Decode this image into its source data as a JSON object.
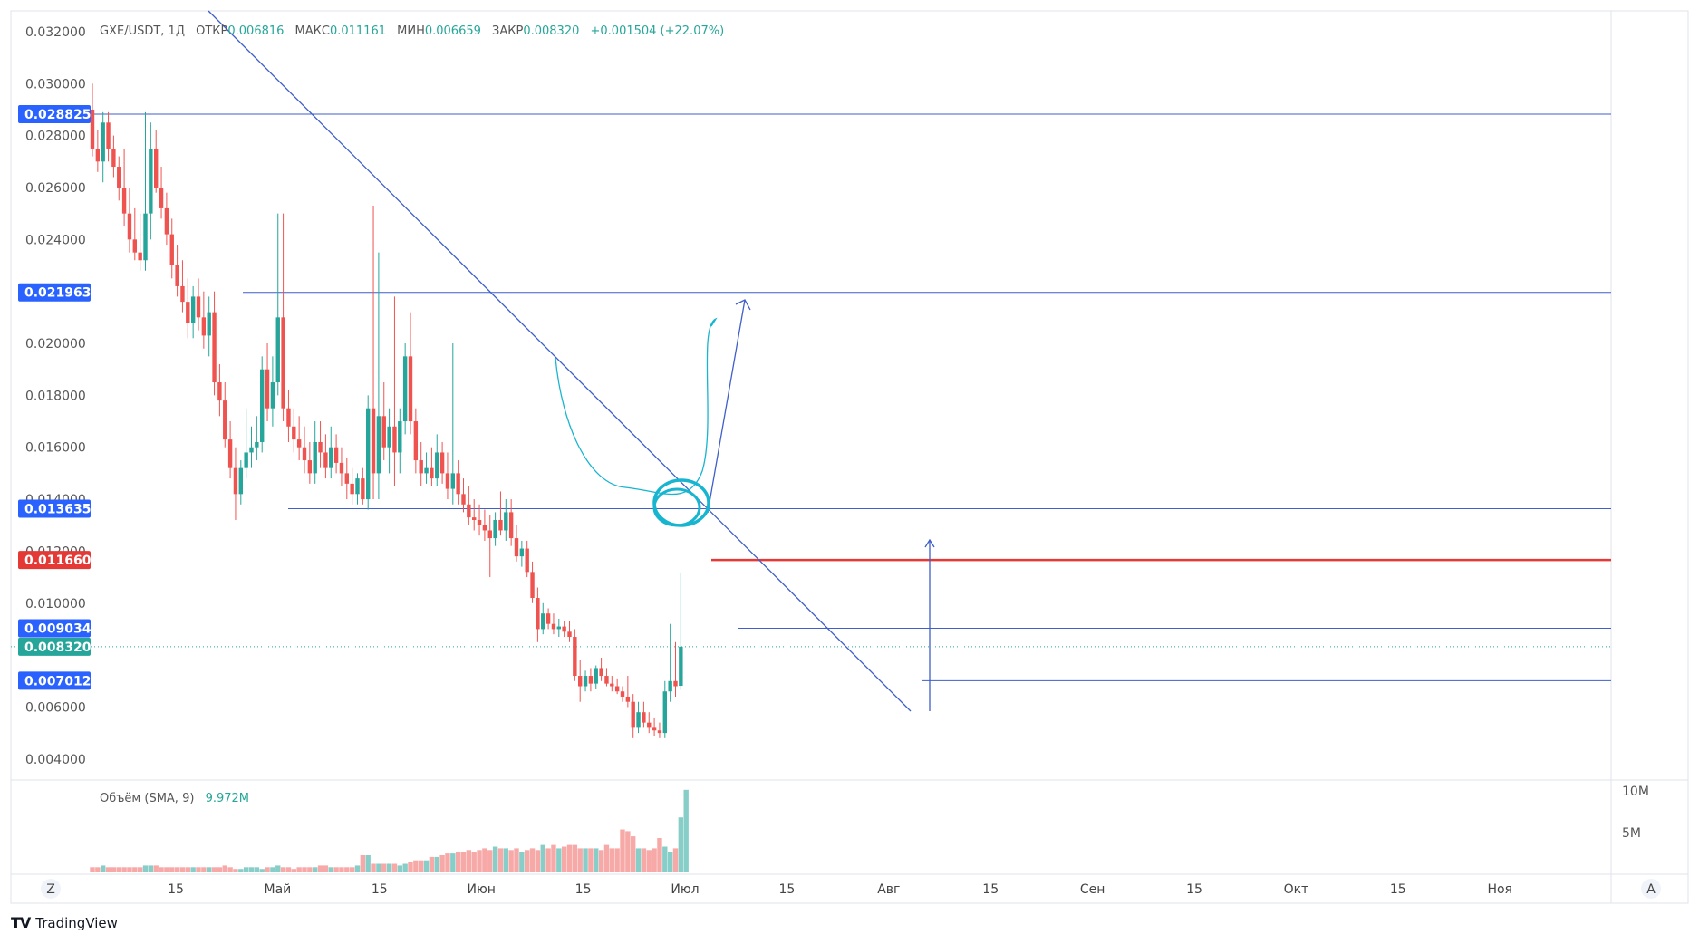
{
  "legend": {
    "symbol": "GXE/USDT, 1Д",
    "open_label": "ОТКР",
    "open": "0.006816",
    "high_label": "МАКС",
    "high": "0.011161",
    "low_label": "МИН",
    "low": "0.006659",
    "close_label": "ЗАКР",
    "close": "0.008320",
    "change": "+0.001504 (+22.07%)"
  },
  "volume_legend": {
    "label": "Объём (SMA, 9)",
    "value": "9.972M"
  },
  "volume_axis": [
    "10M",
    "5M"
  ],
  "bottom_buttons": {
    "left": "Z",
    "right": "A"
  },
  "brand": "TradingView",
  "colors": {
    "up": "#26a69a",
    "down": "#ef5350",
    "line": "#2962ff",
    "red_level": "#e53935",
    "cyan": "#17b5cf",
    "text_green": "#26a69a"
  },
  "chart_data": {
    "type": "candlestick",
    "price_ticks": [
      "0.032000",
      "0.030000",
      "0.028000",
      "0.026000",
      "0.024000",
      "0.020000",
      "0.018000",
      "0.016000",
      "0.014000",
      "0.012000",
      "0.010000",
      "0.006000",
      "0.004000"
    ],
    "ylim": [
      0.0034,
      0.0328
    ],
    "time_ticks": [
      "15",
      "Май",
      "15",
      "Июн",
      "15",
      "Июл",
      "15",
      "Авг",
      "15",
      "Сен",
      "15",
      "Окт",
      "15",
      "Ноя"
    ],
    "level_badges": [
      {
        "value": "0.028825",
        "color": "#2962ff"
      },
      {
        "value": "0.021963",
        "color": "#2962ff"
      },
      {
        "value": "0.013635",
        "color": "#2962ff"
      },
      {
        "value": "0.011660",
        "color": "#e53935"
      },
      {
        "value": "0.009034",
        "color": "#2962ff"
      },
      {
        "value": "0.008320",
        "color": "#26a69a"
      },
      {
        "value": "0.007012",
        "color": "#2962ff"
      }
    ],
    "candles": [
      [
        0.029,
        0.03,
        0.0272,
        0.0275
      ],
      [
        0.0275,
        0.0282,
        0.0266,
        0.027
      ],
      [
        0.027,
        0.0289,
        0.0262,
        0.0285
      ],
      [
        0.0285,
        0.0289,
        0.027,
        0.0275
      ],
      [
        0.0275,
        0.028,
        0.0264,
        0.0268
      ],
      [
        0.0268,
        0.0272,
        0.0255,
        0.026
      ],
      [
        0.026,
        0.0275,
        0.0245,
        0.025
      ],
      [
        0.025,
        0.026,
        0.0235,
        0.024
      ],
      [
        0.024,
        0.0252,
        0.0232,
        0.0235
      ],
      [
        0.0235,
        0.025,
        0.0228,
        0.0232
      ],
      [
        0.0232,
        0.0289,
        0.0228,
        0.025
      ],
      [
        0.025,
        0.0285,
        0.024,
        0.0275
      ],
      [
        0.0275,
        0.0282,
        0.0258,
        0.026
      ],
      [
        0.026,
        0.0268,
        0.0248,
        0.0252
      ],
      [
        0.0252,
        0.0258,
        0.0238,
        0.0242
      ],
      [
        0.0242,
        0.0248,
        0.0225,
        0.023
      ],
      [
        0.023,
        0.0238,
        0.0218,
        0.0222
      ],
      [
        0.0222,
        0.0232,
        0.0212,
        0.0216
      ],
      [
        0.0216,
        0.0225,
        0.0202,
        0.0208
      ],
      [
        0.0208,
        0.0222,
        0.0202,
        0.0218
      ],
      [
        0.0218,
        0.0225,
        0.0205,
        0.021
      ],
      [
        0.021,
        0.022,
        0.0198,
        0.0203
      ],
      [
        0.0203,
        0.0218,
        0.0195,
        0.0212
      ],
      [
        0.0212,
        0.022,
        0.018,
        0.0185
      ],
      [
        0.0185,
        0.0192,
        0.0172,
        0.0178
      ],
      [
        0.0178,
        0.0185,
        0.016,
        0.0163
      ],
      [
        0.0163,
        0.017,
        0.0148,
        0.0152
      ],
      [
        0.0152,
        0.016,
        0.0132,
        0.0142
      ],
      [
        0.0142,
        0.0155,
        0.0138,
        0.0152
      ],
      [
        0.0152,
        0.0175,
        0.0148,
        0.0158
      ],
      [
        0.0158,
        0.0168,
        0.0152,
        0.016
      ],
      [
        0.016,
        0.0172,
        0.0155,
        0.0162
      ],
      [
        0.0162,
        0.0195,
        0.0158,
        0.019
      ],
      [
        0.019,
        0.02,
        0.017,
        0.0175
      ],
      [
        0.0175,
        0.0195,
        0.0168,
        0.0185
      ],
      [
        0.0185,
        0.025,
        0.018,
        0.021
      ],
      [
        0.021,
        0.025,
        0.017,
        0.0175
      ],
      [
        0.0175,
        0.0182,
        0.0162,
        0.0168
      ],
      [
        0.0168,
        0.0175,
        0.0158,
        0.0163
      ],
      [
        0.0163,
        0.0172,
        0.0155,
        0.016
      ],
      [
        0.016,
        0.0168,
        0.015,
        0.0155
      ],
      [
        0.0155,
        0.0162,
        0.0146,
        0.015
      ],
      [
        0.015,
        0.017,
        0.0146,
        0.0162
      ],
      [
        0.0162,
        0.017,
        0.0152,
        0.0158
      ],
      [
        0.0158,
        0.0165,
        0.0148,
        0.0152
      ],
      [
        0.0152,
        0.0168,
        0.0148,
        0.016
      ],
      [
        0.016,
        0.0165,
        0.015,
        0.0154
      ],
      [
        0.0154,
        0.016,
        0.0145,
        0.015
      ],
      [
        0.015,
        0.0156,
        0.014,
        0.0146
      ],
      [
        0.0146,
        0.0152,
        0.0138,
        0.0142
      ],
      [
        0.0142,
        0.015,
        0.0138,
        0.0148
      ],
      [
        0.0148,
        0.0152,
        0.0138,
        0.014
      ],
      [
        0.014,
        0.018,
        0.0136,
        0.0175
      ],
      [
        0.0175,
        0.0253,
        0.014,
        0.015
      ],
      [
        0.015,
        0.0235,
        0.014,
        0.0172
      ],
      [
        0.0172,
        0.0185,
        0.0155,
        0.016
      ],
      [
        0.016,
        0.0175,
        0.015,
        0.0168
      ],
      [
        0.0168,
        0.0218,
        0.0145,
        0.0158
      ],
      [
        0.0158,
        0.0175,
        0.015,
        0.017
      ],
      [
        0.017,
        0.02,
        0.0165,
        0.0195
      ],
      [
        0.0195,
        0.0212,
        0.0165,
        0.017
      ],
      [
        0.017,
        0.0175,
        0.015,
        0.0155
      ],
      [
        0.0155,
        0.0162,
        0.0145,
        0.015
      ],
      [
        0.015,
        0.0158,
        0.0146,
        0.0152
      ],
      [
        0.0152,
        0.016,
        0.0145,
        0.0148
      ],
      [
        0.0148,
        0.0165,
        0.0145,
        0.0158
      ],
      [
        0.0158,
        0.0162,
        0.0146,
        0.015
      ],
      [
        0.015,
        0.0158,
        0.014,
        0.0144
      ],
      [
        0.0144,
        0.02,
        0.0138,
        0.015
      ],
      [
        0.015,
        0.0155,
        0.0138,
        0.0142
      ],
      [
        0.0142,
        0.0148,
        0.0135,
        0.0138
      ],
      [
        0.0138,
        0.0145,
        0.013,
        0.0133
      ],
      [
        0.0133,
        0.014,
        0.0128,
        0.0132
      ],
      [
        0.0132,
        0.0138,
        0.0126,
        0.013
      ],
      [
        0.013,
        0.0136,
        0.0124,
        0.0128
      ],
      [
        0.0128,
        0.0134,
        0.011,
        0.0125
      ],
      [
        0.0125,
        0.0135,
        0.0122,
        0.0132
      ],
      [
        0.0132,
        0.0143,
        0.0126,
        0.0128
      ],
      [
        0.0128,
        0.014,
        0.0124,
        0.0135
      ],
      [
        0.0135,
        0.014,
        0.0122,
        0.0125
      ],
      [
        0.0125,
        0.013,
        0.0116,
        0.0118
      ],
      [
        0.0118,
        0.0124,
        0.0114,
        0.0121
      ],
      [
        0.0121,
        0.0124,
        0.011,
        0.0112
      ],
      [
        0.0112,
        0.0116,
        0.01,
        0.0102
      ],
      [
        0.0102,
        0.0106,
        0.0085,
        0.009
      ],
      [
        0.009,
        0.01,
        0.0088,
        0.0096
      ],
      [
        0.0096,
        0.0098,
        0.009,
        0.0092
      ],
      [
        0.0092,
        0.0096,
        0.0088,
        0.009
      ],
      [
        0.009,
        0.0094,
        0.0087,
        0.0091
      ],
      [
        0.0091,
        0.0093,
        0.0087,
        0.0089
      ],
      [
        0.0089,
        0.0093,
        0.0085,
        0.0087
      ],
      [
        0.0087,
        0.009,
        0.007,
        0.0072
      ],
      [
        0.0072,
        0.0078,
        0.0062,
        0.0068
      ],
      [
        0.0068,
        0.0074,
        0.0066,
        0.0072
      ],
      [
        0.0072,
        0.0075,
        0.0066,
        0.0069
      ],
      [
        0.0069,
        0.0076,
        0.0067,
        0.0075
      ],
      [
        0.0075,
        0.0079,
        0.007,
        0.0072
      ],
      [
        0.0072,
        0.0075,
        0.0068,
        0.0069
      ],
      [
        0.0069,
        0.0072,
        0.0066,
        0.0068
      ],
      [
        0.0068,
        0.0071,
        0.0065,
        0.0066
      ],
      [
        0.0066,
        0.0068,
        0.0062,
        0.0064
      ],
      [
        0.0064,
        0.0072,
        0.006,
        0.0062
      ],
      [
        0.0062,
        0.0065,
        0.0048,
        0.0052
      ],
      [
        0.0052,
        0.0062,
        0.005,
        0.0058
      ],
      [
        0.0058,
        0.0062,
        0.0052,
        0.0054
      ],
      [
        0.0054,
        0.0058,
        0.005,
        0.0052
      ],
      [
        0.0052,
        0.0056,
        0.0049,
        0.0051
      ],
      [
        0.0051,
        0.0054,
        0.0048,
        0.005
      ],
      [
        0.005,
        0.007,
        0.0048,
        0.0066
      ],
      [
        0.0066,
        0.0092,
        0.0062,
        0.007
      ],
      [
        0.007,
        0.0085,
        0.0064,
        0.0068
      ],
      [
        0.006816,
        0.011161,
        0.006659,
        0.00832
      ]
    ],
    "volume": [
      3,
      3,
      4,
      3,
      3,
      3,
      3,
      3,
      3,
      3,
      4,
      4,
      4,
      3,
      3,
      3,
      3,
      3,
      3,
      3,
      3,
      3,
      3,
      3,
      3,
      4,
      3,
      2,
      2,
      3,
      3,
      3,
      2,
      3,
      3,
      4,
      3,
      3,
      2,
      3,
      3,
      3,
      3,
      4,
      4,
      3,
      3,
      3,
      3,
      3,
      4,
      10,
      10,
      5,
      5,
      5,
      5,
      5,
      4,
      5,
      6,
      7,
      7,
      7,
      9,
      9,
      10,
      11,
      11,
      12,
      12,
      13,
      12,
      13,
      14,
      13,
      15,
      14,
      14,
      13,
      14,
      12,
      13,
      14,
      13,
      16,
      14,
      16,
      14,
      15,
      16,
      16,
      14,
      14,
      14,
      14,
      13,
      16,
      14,
      14,
      25,
      24,
      21,
      14,
      14,
      13,
      14,
      20,
      15,
      12,
      14,
      32,
      48
    ],
    "ylim_volume": [
      0,
      50
    ]
  }
}
